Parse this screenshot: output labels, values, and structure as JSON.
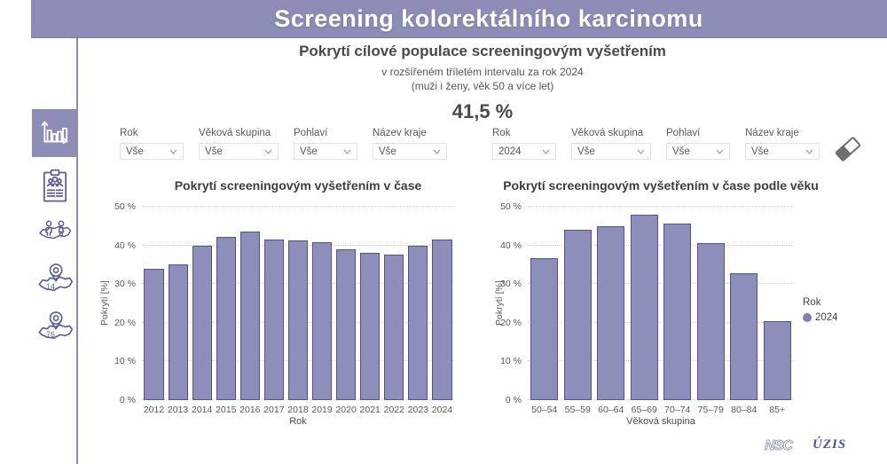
{
  "header": {
    "title": "Screening kolorektálního karcinomu"
  },
  "summary": {
    "title": "Pokrytí cílové populace screeningovým vyšetřením",
    "subtitle1": "v rozšířeném tříletém intervalu za rok 2024",
    "subtitle2": "(muži i ženy, věk 50 a více let)",
    "value": "41,5 %"
  },
  "sidebar": {
    "items": [
      {
        "icon": "bar-chart-icon",
        "active": true
      },
      {
        "icon": "clipboard-report-icon",
        "active": false
      },
      {
        "icon": "map-people-icon",
        "active": false
      },
      {
        "icon": "map-pin-icon",
        "active": false,
        "badge": "14"
      },
      {
        "icon": "map-pin-icon",
        "active": false,
        "badge": "76"
      }
    ]
  },
  "filters": {
    "left": [
      {
        "label": "Rok",
        "value": "Vše"
      },
      {
        "label": "Věková skupina",
        "value": "Vše"
      },
      {
        "label": "Pohlaví",
        "value": "Vše"
      },
      {
        "label": "Název kraje",
        "value": "Vše"
      }
    ],
    "right": [
      {
        "label": "Rok",
        "value": "2024"
      },
      {
        "label": "Věková skupina",
        "value": "Vše"
      },
      {
        "label": "Pohlaví",
        "value": "Vše"
      },
      {
        "label": "Název kraje",
        "value": "Vše"
      }
    ]
  },
  "chart_data": [
    {
      "type": "bar",
      "title": "Pokrytí screeningovým vyšetřením v čase",
      "categories": [
        "2012",
        "2013",
        "2014",
        "2015",
        "2016",
        "2017",
        "2018",
        "2019",
        "2020",
        "2021",
        "2022",
        "2023",
        "2024"
      ],
      "values": [
        34.0,
        35.2,
        39.8,
        42.3,
        43.5,
        41.6,
        41.2,
        40.9,
        38.9,
        38.0,
        37.7,
        39.8,
        41.5
      ],
      "xlabel": "Rok",
      "ylabel": "Pokrytí [%]",
      "ylim": [
        0,
        50
      ],
      "ytick_step": 10,
      "ytick_suffix": " %",
      "grid": true,
      "legend": null,
      "bar_color": "#8e8eba",
      "bar_border": "#52528e"
    },
    {
      "type": "bar",
      "title": "Pokrytí screeningovým vyšetřením v čase podle věku",
      "categories": [
        "50–54",
        "55–59",
        "60–64",
        "65–69",
        "70–74",
        "75–79",
        "80–84",
        "85+"
      ],
      "values": [
        36.6,
        44.0,
        44.9,
        48.0,
        45.7,
        40.7,
        32.8,
        20.4
      ],
      "xlabel": "Věková skupina",
      "ylabel": "Pokrytí [%]",
      "ylim": [
        0,
        50
      ],
      "ytick_step": 10,
      "ytick_suffix": " %",
      "grid": true,
      "legend": {
        "title": "Rok",
        "items": [
          "2024"
        ],
        "position": "right"
      },
      "bar_color": "#8e8eba",
      "bar_border": "#52528e"
    }
  ],
  "footer": {
    "logos": [
      "NSC",
      "ÚZIS"
    ]
  },
  "colors": {
    "accent": "#8c8cb6",
    "bar_fill": "#8e8eba",
    "bar_border": "#52528e",
    "icon": "#5d5d94"
  }
}
